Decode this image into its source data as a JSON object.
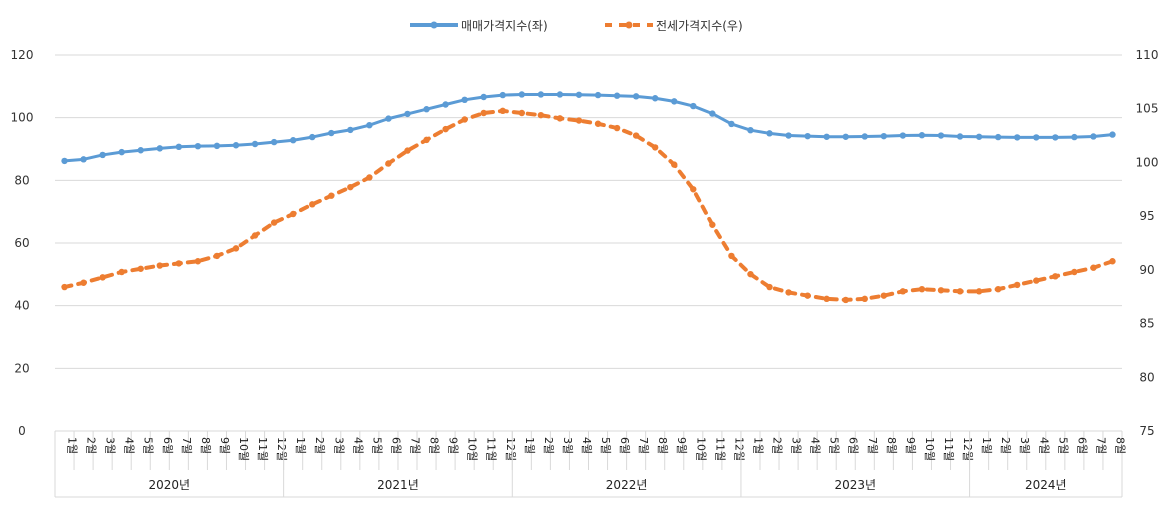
{
  "chart_data": {
    "type": "line",
    "legend": {
      "placement": "top-center",
      "entries": [
        {
          "label": "매매가격지수(좌)",
          "series": 0
        },
        {
          "label": "전세가격지수(우)",
          "series": 1
        }
      ]
    },
    "years": [
      {
        "label": "2020년",
        "months": 12
      },
      {
        "label": "2021년",
        "months": 12
      },
      {
        "label": "2022년",
        "months": 12
      },
      {
        "label": "2023년",
        "months": 12
      },
      {
        "label": "2024년",
        "months": 8
      }
    ],
    "month_suffix": "월",
    "y_left": {
      "min": 0,
      "max": 120,
      "step": 20,
      "ticks": [
        "0",
        "20",
        "40",
        "60",
        "80",
        "100",
        "120"
      ]
    },
    "y_right": {
      "min": 75,
      "max": 110,
      "step": 5,
      "ticks": [
        "75",
        "80",
        "85",
        "90",
        "95",
        "100",
        "105",
        "110"
      ]
    },
    "grid": true,
    "series": [
      {
        "name": "매매가격지수(좌)",
        "axis": "left",
        "color": "#5B9BD5",
        "style": "solid",
        "values": [
          86.2,
          86.7,
          88.1,
          89.0,
          89.6,
          90.2,
          90.7,
          90.9,
          91.0,
          91.2,
          91.6,
          92.2,
          92.8,
          93.8,
          95.1,
          96.1,
          97.6,
          99.7,
          101.2,
          102.7,
          104.2,
          105.7,
          106.6,
          107.2,
          107.4,
          107.4,
          107.4,
          107.3,
          107.2,
          107.0,
          106.8,
          106.2,
          105.2,
          103.7,
          101.3,
          98.0,
          96.0,
          95.0,
          94.3,
          94.1,
          93.9,
          93.9,
          94.0,
          94.1,
          94.3,
          94.4,
          94.3,
          94.0,
          93.9,
          93.8,
          93.7,
          93.7,
          93.7,
          93.8,
          94.0,
          94.6
        ]
      },
      {
        "name": "전세가격지수(우)",
        "axis": "right",
        "color": "#ED7D31",
        "style": "dashed",
        "values": [
          88.4,
          88.8,
          89.3,
          89.8,
          90.1,
          90.4,
          90.6,
          90.8,
          91.3,
          92.0,
          93.2,
          94.4,
          95.2,
          96.1,
          96.9,
          97.7,
          98.6,
          99.9,
          101.1,
          102.1,
          103.1,
          104.0,
          104.6,
          104.8,
          104.6,
          104.4,
          104.1,
          103.9,
          103.6,
          103.2,
          102.5,
          101.4,
          99.8,
          97.5,
          94.2,
          91.3,
          89.6,
          88.4,
          87.9,
          87.6,
          87.3,
          87.2,
          87.3,
          87.6,
          88.0,
          88.2,
          88.1,
          88.0,
          88.0,
          88.2,
          88.6,
          89.0,
          89.4,
          89.8,
          90.2,
          90.8
        ]
      }
    ]
  }
}
